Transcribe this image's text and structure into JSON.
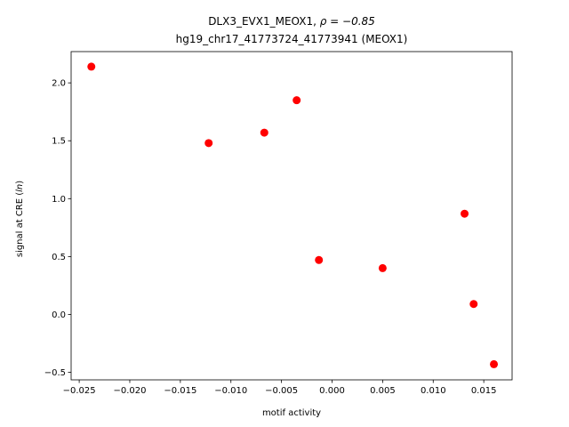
{
  "chart_data": {
    "type": "scatter",
    "title_main": "DLX3_EVX1_MEOX1, ",
    "title_rho": "ρ = −0.85",
    "subtitle": "hg19_chr17_41773724_41773941 (MEOX1)",
    "xlabel": "motif activity",
    "ylabel_prefix": "signal at CRE (",
    "ylabel_var": "ln",
    "ylabel_suffix": ")",
    "xlim": [
      -0.0258,
      0.0178
    ],
    "ylim": [
      -0.565,
      2.27
    ],
    "xticks": [
      -0.025,
      -0.02,
      -0.015,
      -0.01,
      -0.005,
      0.0,
      0.005,
      0.01,
      0.015
    ],
    "xtick_labels": [
      "−0.025",
      "−0.020",
      "−0.015",
      "−0.010",
      "−0.005",
      "0.000",
      "0.005",
      "0.010",
      "0.015"
    ],
    "yticks": [
      -0.5,
      0.0,
      0.5,
      1.0,
      1.5,
      2.0
    ],
    "ytick_labels": [
      "−0.5",
      "0.0",
      "0.5",
      "1.0",
      "1.5",
      "2.0"
    ],
    "point_color": "#ff0000",
    "points": [
      {
        "x": -0.0238,
        "y": 2.14
      },
      {
        "x": -0.0122,
        "y": 1.48
      },
      {
        "x": -0.0067,
        "y": 1.57
      },
      {
        "x": -0.0035,
        "y": 1.85
      },
      {
        "x": -0.0013,
        "y": 0.47
      },
      {
        "x": 0.005,
        "y": 0.4
      },
      {
        "x": 0.0131,
        "y": 0.87
      },
      {
        "x": 0.014,
        "y": 0.09
      },
      {
        "x": 0.016,
        "y": -0.43
      }
    ],
    "grid": false,
    "legend": "none"
  }
}
